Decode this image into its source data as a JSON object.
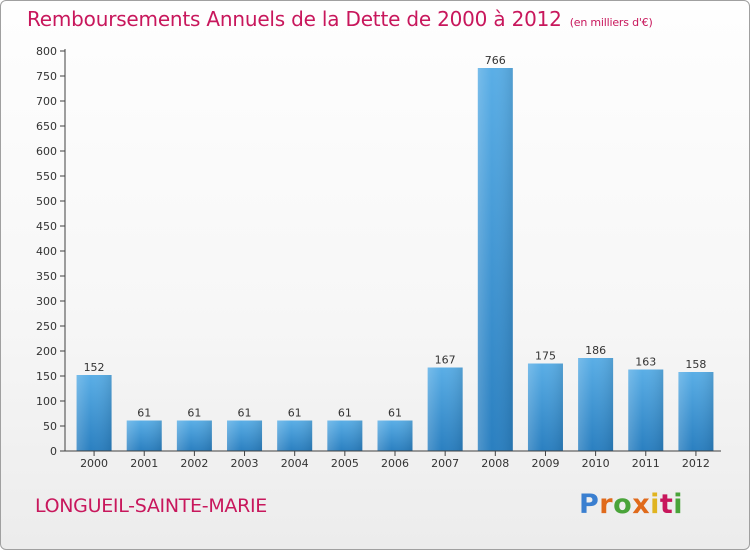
{
  "header": {
    "title": "Remboursements Annuels de la Dette de 2000 à 2012",
    "unit": "(en milliers d'€)"
  },
  "footer": {
    "town": "LONGUEIL-SAINTE-MARIE",
    "logo": "Proxiti"
  },
  "colors": {
    "title": "#c8175c",
    "bar_light": "#5aaee6",
    "bar_dark": "#2a7fc0",
    "axis": "#404040",
    "grid": "#d8d8d8"
  },
  "chart_data": {
    "type": "bar",
    "title": "Remboursements Annuels de la Dette de 2000 à 2012",
    "subtitle": "(en milliers d'€)",
    "categories": [
      "2000",
      "2001",
      "2002",
      "2003",
      "2004",
      "2005",
      "2006",
      "2007",
      "2008",
      "2009",
      "2010",
      "2011",
      "2012"
    ],
    "values": [
      152,
      61,
      61,
      61,
      61,
      61,
      61,
      167,
      766,
      175,
      186,
      163,
      158
    ],
    "ylim": [
      0,
      800
    ],
    "yticks": [
      0,
      50,
      100,
      150,
      200,
      250,
      300,
      350,
      400,
      450,
      500,
      550,
      600,
      650,
      700,
      750,
      800
    ],
    "grid": false,
    "data_labels": true
  }
}
